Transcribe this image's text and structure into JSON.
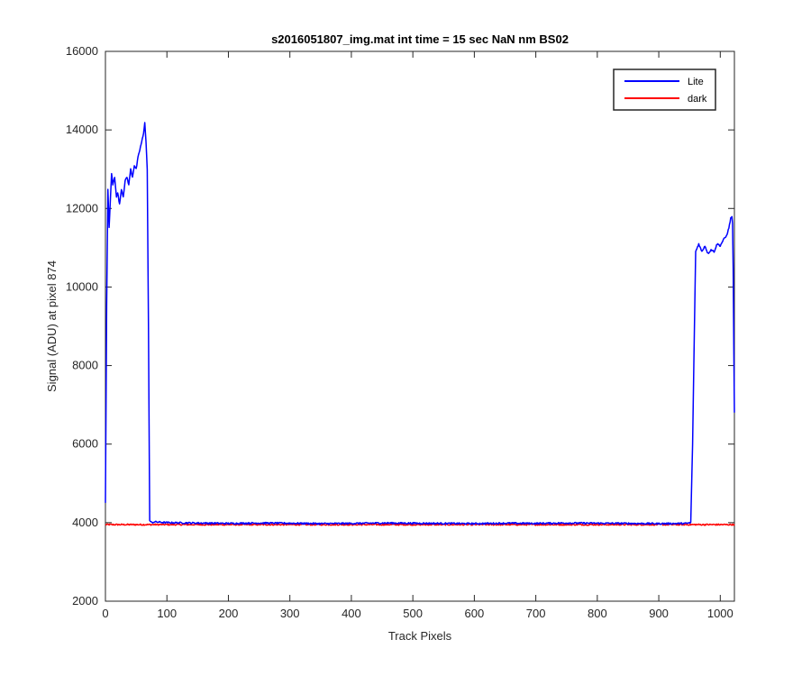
{
  "chart_data": {
    "type": "line",
    "title": "s2016051807_img.mat int time = 15 sec  NaN nm BS02",
    "xlabel": "Track Pixels",
    "ylabel": "Signal (ADU) at pixel 874",
    "xlim": [
      0,
      1023
    ],
    "ylim": [
      2000,
      16000
    ],
    "xticks": [
      0,
      100,
      200,
      300,
      400,
      500,
      600,
      700,
      800,
      900,
      1000
    ],
    "yticks": [
      2000,
      4000,
      6000,
      8000,
      10000,
      12000,
      14000,
      16000
    ],
    "grid": false,
    "legend_position": "top-right",
    "series": [
      {
        "name": "Lite",
        "color": "#0000ff",
        "x": [
          0,
          2,
          4,
          6,
          8,
          10,
          12,
          15,
          18,
          20,
          23,
          26,
          29,
          32,
          35,
          38,
          41,
          44,
          47,
          50,
          53,
          56,
          59,
          62,
          64,
          66,
          68,
          70,
          72,
          75,
          80,
          100,
          150,
          200,
          250,
          300,
          350,
          400,
          450,
          500,
          550,
          600,
          650,
          700,
          750,
          800,
          850,
          900,
          945,
          952,
          955,
          958,
          960,
          965,
          970,
          975,
          980,
          985,
          990,
          995,
          1000,
          1005,
          1010,
          1014,
          1017,
          1019,
          1020,
          1021,
          1022,
          1023
        ],
        "y": [
          4500,
          9500,
          12500,
          11500,
          12200,
          12900,
          12600,
          12800,
          12300,
          12400,
          12100,
          12500,
          12300,
          12700,
          12800,
          12600,
          13000,
          12800,
          13100,
          13000,
          13300,
          13500,
          13700,
          13900,
          14200,
          13700,
          13000,
          9000,
          4050,
          4000,
          4020,
          4000,
          3990,
          3980,
          3990,
          3985,
          3975,
          3980,
          3990,
          3985,
          3980,
          3975,
          3985,
          3980,
          3990,
          3985,
          3980,
          3975,
          3980,
          4000,
          6000,
          9000,
          10900,
          11100,
          10900,
          11050,
          10850,
          10950,
          10900,
          11100,
          11050,
          11200,
          11300,
          11500,
          11750,
          11800,
          11600,
          10500,
          8500,
          6800
        ]
      },
      {
        "name": "dark",
        "color": "#ff0000",
        "x": [
          0,
          1023
        ],
        "y": [
          3950,
          3950
        ]
      }
    ]
  }
}
